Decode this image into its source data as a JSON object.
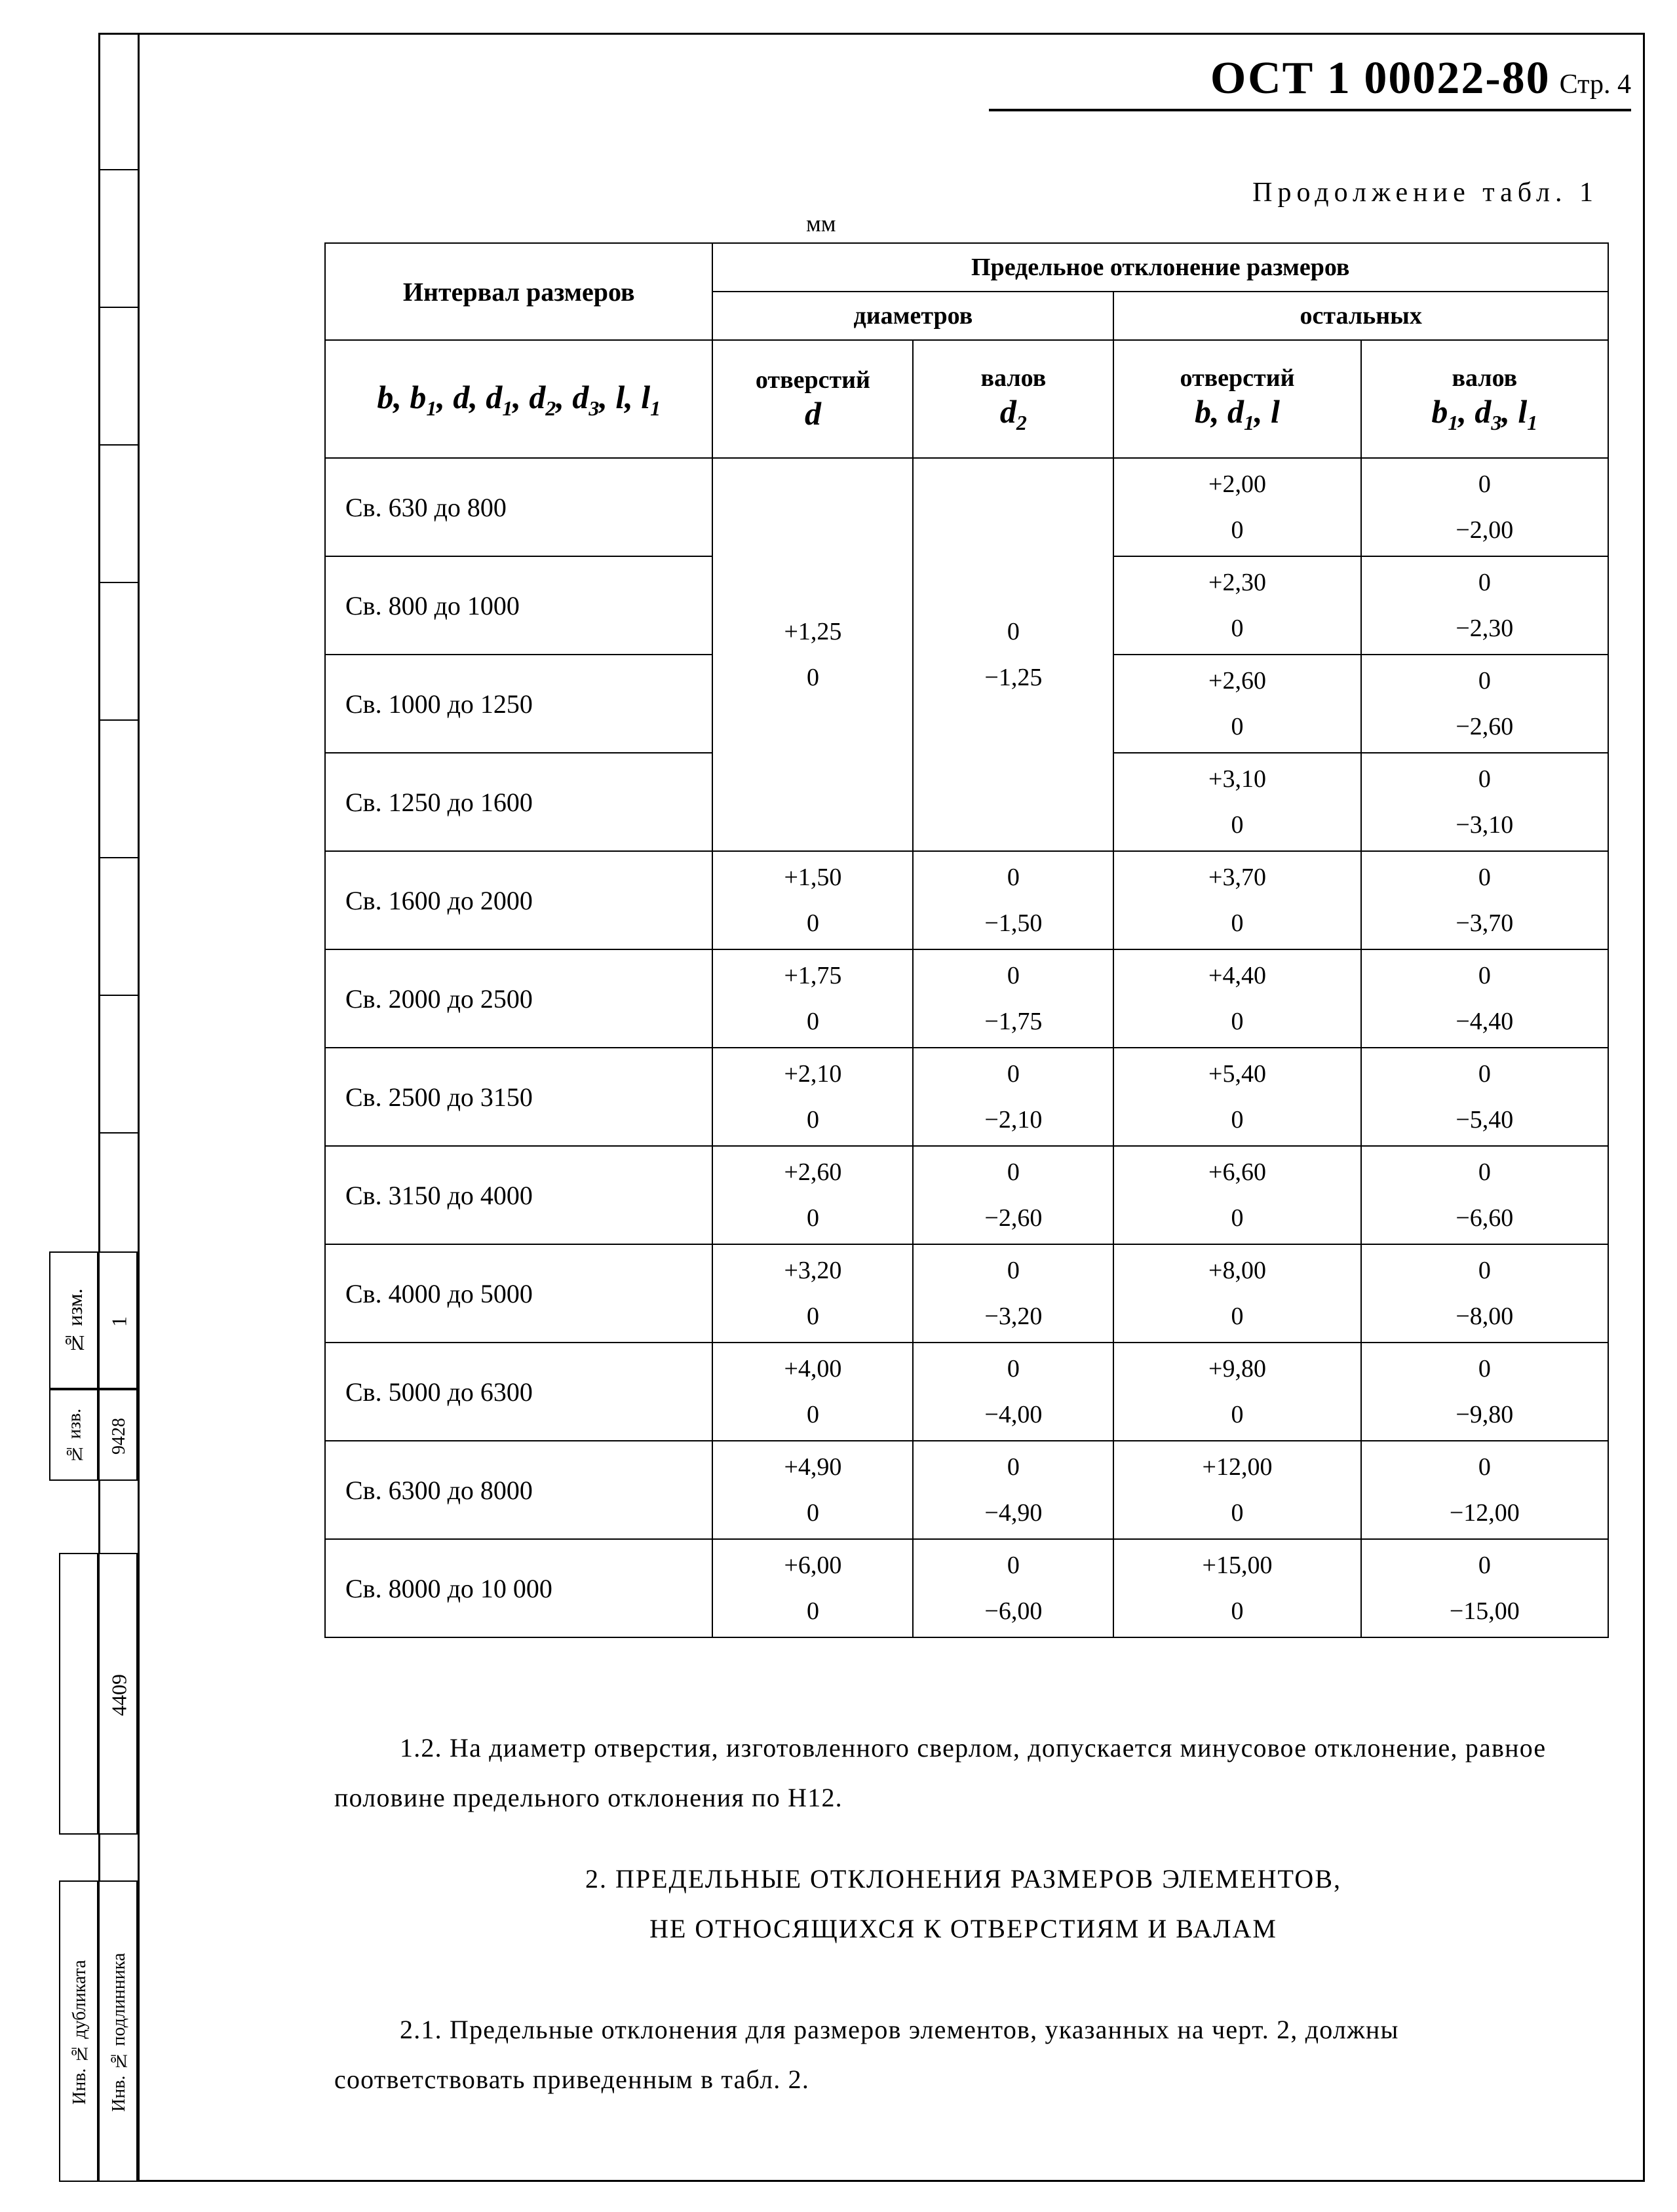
{
  "doc_id": "ОСТ 1 00022-80",
  "page_label": "Стр. 4",
  "continuation": "Продолжение табл. 1",
  "unit_label": "мм",
  "side_labels": {
    "izm": "№ изм.",
    "izv": "№ изв.",
    "num1": "1",
    "num2": "9428",
    "num3": "4409",
    "dub": "Инв. № дубликата",
    "pod": "Инв. № подлинника"
  },
  "table": {
    "header": {
      "interval": "Интервал размеров",
      "interval_math": "b, b₁, d, d₁, d₂, d₃, l, l₁",
      "tol_group": "Предельное отклонение размеров",
      "diam": "диаметров",
      "other": "остальных",
      "col1_t": "отверстий",
      "col1_m": "d",
      "col2_t": "валов",
      "col2_m": "d₂",
      "col3_t": "отверстий",
      "col3_m": "b, d₁, l",
      "col4_t": "валов",
      "col4_m": "b₁, d₃, l₁"
    },
    "rows": [
      {
        "label": "Св. 630 до 800",
        "d_hi": null,
        "d_lo": null,
        "d2_hi": null,
        "d2_lo": null,
        "o_hi": "+2,00",
        "o_lo": "0",
        "v_hi": "0",
        "v_lo": "−2,00",
        "span_start": true,
        "span": 4,
        "d_block_hi": "+1,25",
        "d_block_lo": "0",
        "d2_block_hi": "0",
        "d2_block_lo": "−1,25"
      },
      {
        "label": "Св. 800 до 1000",
        "o_hi": "+2,30",
        "o_lo": "0",
        "v_hi": "0",
        "v_lo": "−2,30"
      },
      {
        "label": "Св. 1000 до 1250",
        "o_hi": "+2,60",
        "o_lo": "0",
        "v_hi": "0",
        "v_lo": "−2,60"
      },
      {
        "label": "Св. 1250 до 1600",
        "o_hi": "+3,10",
        "o_lo": "0",
        "v_hi": "0",
        "v_lo": "−3,10"
      },
      {
        "label": "Св. 1600 до 2000",
        "d_hi": "+1,50",
        "d_lo": "0",
        "d2_hi": "0",
        "d2_lo": "−1,50",
        "o_hi": "+3,70",
        "o_lo": "0",
        "v_hi": "0",
        "v_lo": "−3,70"
      },
      {
        "label": "Св. 2000 до 2500",
        "d_hi": "+1,75",
        "d_lo": "0",
        "d2_hi": "0",
        "d2_lo": "−1,75",
        "o_hi": "+4,40",
        "o_lo": "0",
        "v_hi": "0",
        "v_lo": "−4,40"
      },
      {
        "label": "Св. 2500 до 3150",
        "d_hi": "+2,10",
        "d_lo": "0",
        "d2_hi": "0",
        "d2_lo": "−2,10",
        "o_hi": "+5,40",
        "o_lo": "0",
        "v_hi": "0",
        "v_lo": "−5,40"
      },
      {
        "label": "Св. 3150 до 4000",
        "d_hi": "+2,60",
        "d_lo": "0",
        "d2_hi": "0",
        "d2_lo": "−2,60",
        "o_hi": "+6,60",
        "o_lo": "0",
        "v_hi": "0",
        "v_lo": "−6,60"
      },
      {
        "label": "Св. 4000 до 5000",
        "d_hi": "+3,20",
        "d_lo": "0",
        "d2_hi": "0",
        "d2_lo": "−3,20",
        "o_hi": "+8,00",
        "o_lo": "0",
        "v_hi": "0",
        "v_lo": "−8,00"
      },
      {
        "label": "Св. 5000 до 6300",
        "d_hi": "+4,00",
        "d_lo": "0",
        "d2_hi": "0",
        "d2_lo": "−4,00",
        "o_hi": "+9,80",
        "o_lo": "0",
        "v_hi": "0",
        "v_lo": "−9,80"
      },
      {
        "label": "Св. 6300 до 8000",
        "d_hi": "+4,90",
        "d_lo": "0",
        "d2_hi": "0",
        "d2_lo": "−4,90",
        "o_hi": "+12,00",
        "o_lo": "0",
        "v_hi": "0",
        "v_lo": "−12,00"
      },
      {
        "label": "Св. 8000 до 10 000",
        "d_hi": "+6,00",
        "d_lo": "0",
        "d2_hi": "0",
        "d2_lo": "−6,00",
        "o_hi": "+15,00",
        "o_lo": "0",
        "v_hi": "0",
        "v_lo": "−15,00"
      }
    ]
  },
  "note_1_2": "1.2. На диаметр отверстия, изготовленного сверлом, допускается минусовое отклонение, равное половине предельного отклонения по Н12.",
  "section2_line1": "2. ПРЕДЕЛЬНЫЕ ОТКЛОНЕНИЯ РАЗМЕРОВ ЭЛЕМЕНТОВ,",
  "section2_line2": "НЕ ОТНОСЯЩИХСЯ К ОТВЕРСТИЯМ И ВАЛАМ",
  "note_2_1": "2.1. Предельные отклонения для размеров элементов, указанных на черт. 2, должны соответствовать приведенным в табл. 2.",
  "colors": {
    "text": "#000000",
    "bg": "#ffffff",
    "border": "#000000"
  }
}
